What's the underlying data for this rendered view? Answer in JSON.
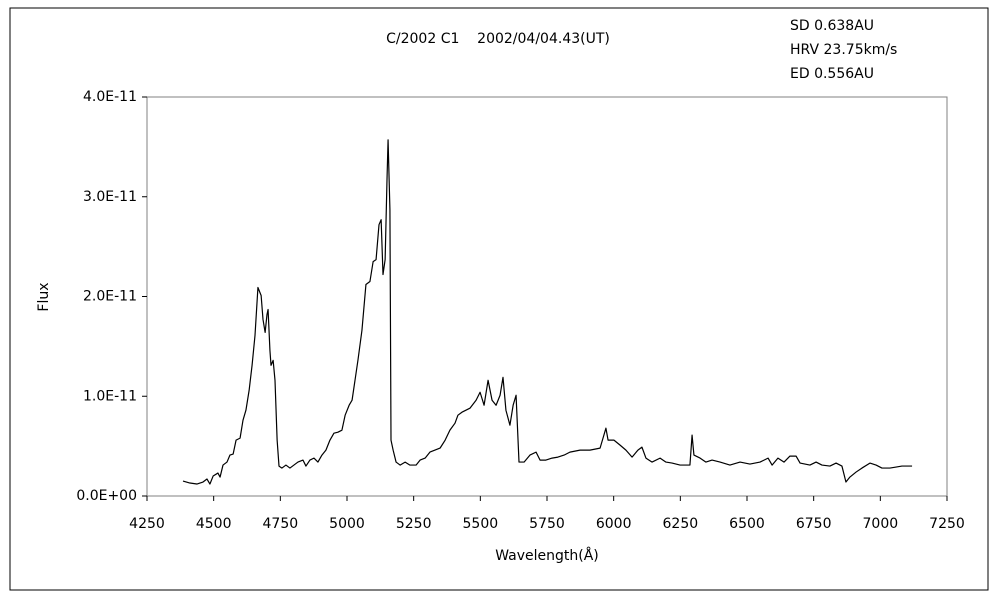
{
  "chart_data": {
    "type": "line",
    "title": "C/2002 C1    2002/04/04.43(UT)",
    "annotations": [
      "SD 0.638AU",
      "HRV 23.75km/s",
      "ED 0.556AU"
    ],
    "xlabel": "Wavelength(Å)",
    "ylabel": "Flux",
    "color": "#000000",
    "grid": false,
    "xlim": [
      4250,
      7250
    ],
    "xticks": [
      4250,
      4500,
      4750,
      5000,
      5250,
      5500,
      5750,
      6000,
      6250,
      6500,
      6750,
      7000,
      7250
    ],
    "ylim": [
      0,
      4e-11
    ],
    "yticks": [
      {
        "value": 0,
        "label": "0.0E+00"
      },
      {
        "value": 1e-11,
        "label": "1.0E-11"
      },
      {
        "value": 2e-11,
        "label": "2.0E-11"
      },
      {
        "value": 3e-11,
        "label": "3.0E-11"
      },
      {
        "value": 4e-11,
        "label": "4.0E-11"
      }
    ],
    "x": [
      4385,
      4411,
      4437,
      4460,
      4475,
      4486,
      4498,
      4516,
      4524,
      4535,
      4550,
      4561,
      4573,
      4584,
      4599,
      4610,
      4621,
      4633,
      4644,
      4655,
      4666,
      4678,
      4685,
      4693,
      4700,
      4704,
      4711,
      4715,
      4723,
      4730,
      4738,
      4745,
      4756,
      4771,
      4786,
      4801,
      4816,
      4835,
      4846,
      4861,
      4876,
      4891,
      4906,
      4921,
      4936,
      4951,
      4966,
      4981,
      4993,
      5008,
      5019,
      5030,
      5041,
      5056,
      5071,
      5086,
      5098,
      5109,
      5120,
      5128,
      5135,
      5143,
      5150,
      5154,
      5161,
      5165,
      5173,
      5184,
      5199,
      5218,
      5236,
      5259,
      5274,
      5293,
      5311,
      5330,
      5349,
      5368,
      5386,
      5405,
      5416,
      5431,
      5446,
      5461,
      5484,
      5499,
      5514,
      5529,
      5544,
      5559,
      5574,
      5585,
      5596,
      5611,
      5623,
      5634,
      5645,
      5664,
      5686,
      5709,
      5724,
      5746,
      5769,
      5791,
      5814,
      5836,
      5874,
      5911,
      5949,
      5971,
      5979,
      6001,
      6024,
      6046,
      6069,
      6091,
      6106,
      6121,
      6144,
      6174,
      6196,
      6219,
      6249,
      6286,
      6294,
      6301,
      6324,
      6346,
      6369,
      6399,
      6436,
      6474,
      6511,
      6549,
      6579,
      6594,
      6616,
      6639,
      6661,
      6684,
      6699,
      6736,
      6759,
      6781,
      6811,
      6834,
      6856,
      6871,
      6886,
      6909,
      6931,
      6961,
      6984,
      7006,
      7036,
      7059,
      7081,
      7119
    ],
    "values": [
      1.5e-12,
      1.3e-12,
      1.2e-12,
      1.4e-12,
      1.7e-12,
      1.2e-12,
      2e-12,
      2.3e-12,
      1.9e-12,
      3.1e-12,
      3.4e-12,
      4.1e-12,
      4.2e-12,
      5.6e-12,
      5.8e-12,
      7.6e-12,
      8.6e-12,
      1.06e-11,
      1.31e-11,
      1.61e-11,
      2.09e-11,
      2.01e-11,
      1.77e-11,
      1.64e-11,
      1.82e-11,
      1.87e-11,
      1.46e-11,
      1.31e-11,
      1.36e-11,
      1.16e-11,
      5.6e-12,
      3e-12,
      2.8e-12,
      3.1e-12,
      2.8e-12,
      3.1e-12,
      3.4e-12,
      3.6e-12,
      3e-12,
      3.6e-12,
      3.8e-12,
      3.4e-12,
      4.1e-12,
      4.6e-12,
      5.6e-12,
      6.3e-12,
      6.4e-12,
      6.6e-12,
      8.1e-12,
      9.1e-12,
      9.6e-12,
      1.16e-11,
      1.36e-11,
      1.66e-11,
      2.12e-11,
      2.15e-11,
      2.35e-11,
      2.37e-11,
      2.72e-11,
      2.77e-11,
      2.22e-11,
      2.37e-11,
      3.17e-11,
      3.57e-11,
      2.87e-11,
      5.6e-12,
      4.6e-12,
      3.4e-12,
      3.1e-12,
      3.4e-12,
      3.1e-12,
      3.1e-12,
      3.6e-12,
      3.8e-12,
      4.4e-12,
      4.6e-12,
      4.8e-12,
      5.6e-12,
      6.6e-12,
      7.3e-12,
      8.1e-12,
      8.4e-12,
      8.6e-12,
      8.8e-12,
      9.6e-12,
      1.04e-11,
      9.1e-12,
      1.16e-11,
      9.6e-12,
      9.1e-12,
      1.01e-11,
      1.19e-11,
      8.6e-12,
      7.1e-12,
      9.1e-12,
      1.01e-11,
      3.4e-12,
      3.4e-12,
      4.1e-12,
      4.4e-12,
      3.6e-12,
      3.6e-12,
      3.8e-12,
      3.9e-12,
      4.1e-12,
      4.4e-12,
      4.6e-12,
      4.6e-12,
      4.8e-12,
      6.8e-12,
      5.6e-12,
      5.6e-12,
      5.1e-12,
      4.6e-12,
      3.9e-12,
      4.6e-12,
      4.9e-12,
      3.8e-12,
      3.4e-12,
      3.8e-12,
      3.4e-12,
      3.3e-12,
      3.1e-12,
      3.1e-12,
      6.1e-12,
      4.1e-12,
      3.8e-12,
      3.4e-12,
      3.6e-12,
      3.4e-12,
      3.1e-12,
      3.4e-12,
      3.2e-12,
      3.4e-12,
      3.8e-12,
      3.1e-12,
      3.8e-12,
      3.4e-12,
      4e-12,
      4e-12,
      3.3e-12,
      3.1e-12,
      3.4e-12,
      3.1e-12,
      3e-12,
      3.3e-12,
      3e-12,
      1.4e-12,
      1.9e-12,
      2.4e-12,
      2.8e-12,
      3.3e-12,
      3.1e-12,
      2.8e-12,
      2.8e-12,
      2.9e-12,
      3e-12,
      3e-12
    ]
  }
}
